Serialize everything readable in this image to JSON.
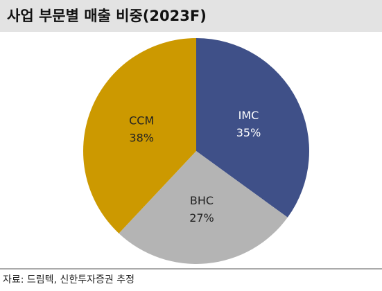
{
  "chart_data": {
    "type": "pie",
    "title": "사업 부문별 매출 비중(2023F)",
    "categories": [
      "IMC",
      "BHC",
      "CCM"
    ],
    "values": [
      35,
      27,
      38
    ],
    "value_labels": [
      "35%",
      "27%",
      "38%"
    ],
    "colors": [
      "#3f5088",
      "#b4b4b4",
      "#cc9900"
    ],
    "source": "자료: 드림텍, 신한투자증권 추정"
  }
}
